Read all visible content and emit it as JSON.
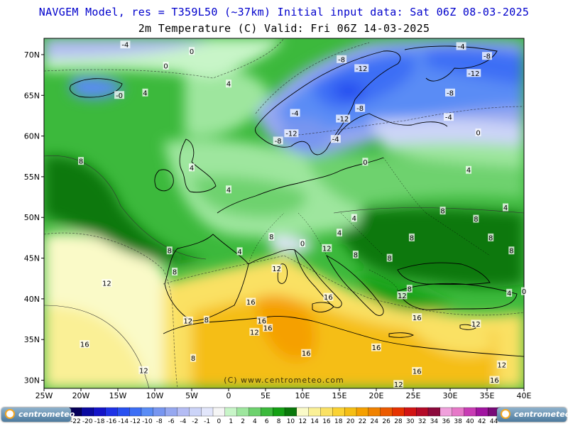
{
  "header": {
    "line1": "NAVGEM Model, res = T359L50 (~37km)   Initial input data: Sat 06Z 08-03-2025",
    "line2": "2m Temperature (C)  Valid: Fri 06Z 14-03-2025"
  },
  "watermark": "(C) www.centrometeo.com",
  "logo_text": "centrometeo",
  "chart_data": {
    "type": "heatmap",
    "x_axis": {
      "ticks": [
        "25W",
        "20W",
        "15W",
        "10W",
        "5W",
        "0",
        "5E",
        "10E",
        "15E",
        "20E",
        "25E",
        "30E",
        "35E",
        "40E"
      ],
      "range": [
        -25,
        40
      ]
    },
    "y_axis": {
      "ticks": [
        "70N",
        "65N",
        "60N",
        "55N",
        "50N",
        "45N",
        "40N",
        "35N",
        "30N"
      ],
      "range": [
        29,
        72
      ]
    },
    "colorbar": {
      "labels": [
        "-22",
        "-20",
        "-18",
        "-16",
        "-14",
        "-12",
        "-10",
        "-8",
        "-6",
        "-4",
        "-2",
        "-1",
        "0",
        "1",
        "2",
        "4",
        "6",
        "8",
        "10",
        "12",
        "14",
        "16",
        "18",
        "20",
        "22",
        "24",
        "26",
        "28",
        "30",
        "32",
        "34",
        "36",
        "38",
        "40",
        "42",
        "44"
      ],
      "colors": [
        "#05005a",
        "#0a0aa0",
        "#1414c8",
        "#1e32e6",
        "#2850f0",
        "#3c6ef5",
        "#5a8cf5",
        "#7896f0",
        "#96a8f0",
        "#b4bcf4",
        "#ccd4f8",
        "#e2e6fb",
        "#f5f5f5",
        "#c8f5c8",
        "#9ee69e",
        "#6ed26e",
        "#3cb93c",
        "#14a014",
        "#0a780a",
        "#fafac8",
        "#faf096",
        "#fae164",
        "#fad232",
        "#f5be14",
        "#f5a000",
        "#f08200",
        "#eb5a00",
        "#e63200",
        "#d21414",
        "#b40a28",
        "#8c0a3c",
        "#f0a0dc",
        "#e678c8",
        "#c83cb4",
        "#a014a0",
        "#780a78"
      ]
    },
    "contour_labels": [
      {
        "lon": -14.0,
        "lat": 71.2,
        "v": "-4"
      },
      {
        "lon": -5.0,
        "lat": 70.4,
        "v": "0"
      },
      {
        "lon": -8.5,
        "lat": 68.6,
        "v": "0"
      },
      {
        "lon": -14.8,
        "lat": 65.0,
        "v": "-0"
      },
      {
        "lon": -11.3,
        "lat": 65.3,
        "v": "4"
      },
      {
        "lon": 0.0,
        "lat": 66.4,
        "v": "4"
      },
      {
        "lon": 15.3,
        "lat": 69.4,
        "v": "-8"
      },
      {
        "lon": 18.0,
        "lat": 68.3,
        "v": "-12"
      },
      {
        "lon": 31.5,
        "lat": 71.0,
        "v": "-4"
      },
      {
        "lon": 35.0,
        "lat": 69.8,
        "v": "-8"
      },
      {
        "lon": 33.2,
        "lat": 67.7,
        "v": "-12"
      },
      {
        "lon": 30.0,
        "lat": 65.3,
        "v": "-8"
      },
      {
        "lon": 17.8,
        "lat": 63.4,
        "v": "-8"
      },
      {
        "lon": 15.5,
        "lat": 62.1,
        "v": "-12"
      },
      {
        "lon": 9.0,
        "lat": 62.8,
        "v": "-4"
      },
      {
        "lon": 29.8,
        "lat": 62.3,
        "v": "-4"
      },
      {
        "lon": 8.5,
        "lat": 60.3,
        "v": "-12"
      },
      {
        "lon": 6.7,
        "lat": 59.4,
        "v": "-8"
      },
      {
        "lon": 14.5,
        "lat": 59.6,
        "v": "-4"
      },
      {
        "lon": 33.8,
        "lat": 60.4,
        "v": "0"
      },
      {
        "lon": 18.5,
        "lat": 56.8,
        "v": "0"
      },
      {
        "lon": -20.0,
        "lat": 56.9,
        "v": "8"
      },
      {
        "lon": -5.0,
        "lat": 56.1,
        "v": "4"
      },
      {
        "lon": 0.0,
        "lat": 53.4,
        "v": "4"
      },
      {
        "lon": 32.5,
        "lat": 55.8,
        "v": "4"
      },
      {
        "lon": 37.5,
        "lat": 51.2,
        "v": "4"
      },
      {
        "lon": 29.0,
        "lat": 50.8,
        "v": "8"
      },
      {
        "lon": 33.5,
        "lat": 49.8,
        "v": "8"
      },
      {
        "lon": 17.0,
        "lat": 49.9,
        "v": "4"
      },
      {
        "lon": 15.0,
        "lat": 48.1,
        "v": "4"
      },
      {
        "lon": 5.8,
        "lat": 47.6,
        "v": "8"
      },
      {
        "lon": 24.8,
        "lat": 47.5,
        "v": "8"
      },
      {
        "lon": 35.5,
        "lat": 47.5,
        "v": "8"
      },
      {
        "lon": 13.3,
        "lat": 46.2,
        "v": "12"
      },
      {
        "lon": 10.0,
        "lat": 46.8,
        "v": "0"
      },
      {
        "lon": -8.0,
        "lat": 45.9,
        "v": "8"
      },
      {
        "lon": 1.5,
        "lat": 45.8,
        "v": "4"
      },
      {
        "lon": 17.2,
        "lat": 45.4,
        "v": "8"
      },
      {
        "lon": 21.8,
        "lat": 45.0,
        "v": "8"
      },
      {
        "lon": 38.3,
        "lat": 45.9,
        "v": "8"
      },
      {
        "lon": -7.3,
        "lat": 43.3,
        "v": "8"
      },
      {
        "lon": 6.5,
        "lat": 43.7,
        "v": "12"
      },
      {
        "lon": -16.5,
        "lat": 41.9,
        "v": "12"
      },
      {
        "lon": 24.5,
        "lat": 41.2,
        "v": "8"
      },
      {
        "lon": 23.5,
        "lat": 40.4,
        "v": "12"
      },
      {
        "lon": 38.0,
        "lat": 40.7,
        "v": "4"
      },
      {
        "lon": 40.0,
        "lat": 40.9,
        "v": "0"
      },
      {
        "lon": 3.0,
        "lat": 39.6,
        "v": "16"
      },
      {
        "lon": 13.5,
        "lat": 40.2,
        "v": "16"
      },
      {
        "lon": -5.5,
        "lat": 37.3,
        "v": "12"
      },
      {
        "lon": -3.0,
        "lat": 37.4,
        "v": "8"
      },
      {
        "lon": 4.5,
        "lat": 37.3,
        "v": "16"
      },
      {
        "lon": 5.3,
        "lat": 36.4,
        "v": "16"
      },
      {
        "lon": 3.5,
        "lat": 35.9,
        "v": "12"
      },
      {
        "lon": 25.5,
        "lat": 37.7,
        "v": "16"
      },
      {
        "lon": 33.5,
        "lat": 36.9,
        "v": "12"
      },
      {
        "lon": -19.5,
        "lat": 34.4,
        "v": "16"
      },
      {
        "lon": 10.5,
        "lat": 33.3,
        "v": "16"
      },
      {
        "lon": 20.0,
        "lat": 34.0,
        "v": "16"
      },
      {
        "lon": -4.8,
        "lat": 32.7,
        "v": "8"
      },
      {
        "lon": -11.5,
        "lat": 31.2,
        "v": "12"
      },
      {
        "lon": 25.5,
        "lat": 31.1,
        "v": "16"
      },
      {
        "lon": 37.0,
        "lat": 31.9,
        "v": "12"
      },
      {
        "lon": 36.0,
        "lat": 30.0,
        "v": "16"
      },
      {
        "lon": 23.0,
        "lat": 29.5,
        "v": "12"
      }
    ]
  }
}
